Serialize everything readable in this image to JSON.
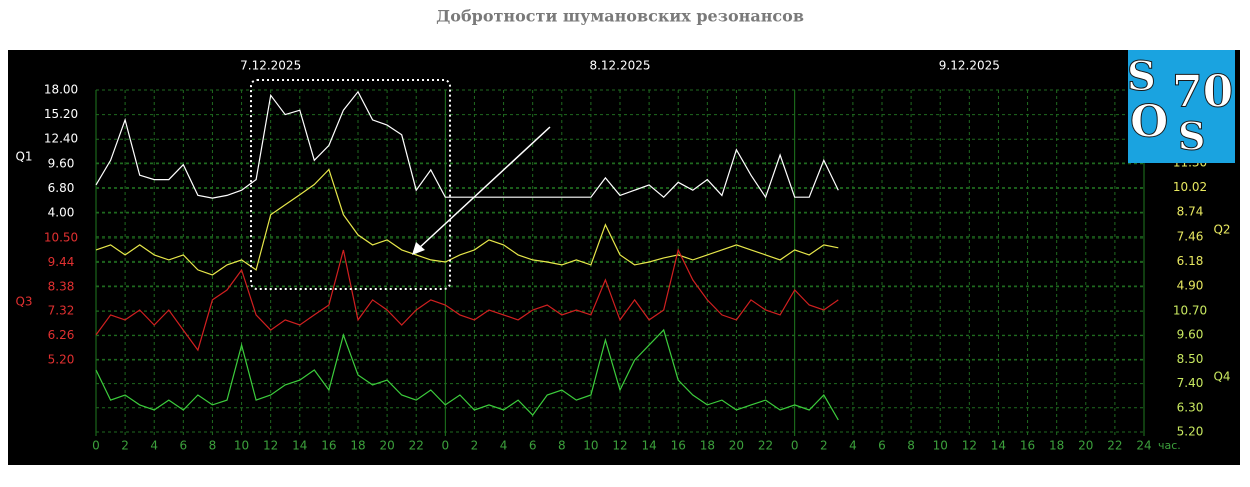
{
  "chart_data": {
    "type": "line",
    "title": "Добротности шумановских резонансов",
    "logo": [
      "S",
      "70",
      "O",
      "S"
    ],
    "x_unit": "час.",
    "xlim": [
      0,
      72
    ],
    "dates": [
      {
        "value": 12,
        "label": "7.12.2025"
      },
      {
        "value": 36,
        "label": "8.12.2025"
      },
      {
        "value": 60,
        "label": "9.12.2025"
      }
    ],
    "xticks": [
      0,
      2,
      4,
      6,
      8,
      10,
      12,
      14,
      16,
      18,
      20,
      22,
      {
        "value": 24,
        "label": "0"
      },
      {
        "value": 26,
        "label": "2"
      },
      {
        "value": 28,
        "label": "4"
      },
      {
        "value": 30,
        "label": "6"
      },
      {
        "value": 32,
        "label": "8"
      },
      {
        "value": 34,
        "label": "10"
      },
      {
        "value": 36,
        "label": "12"
      },
      {
        "value": 38,
        "label": "14"
      },
      {
        "value": 40,
        "label": "16"
      },
      {
        "value": 42,
        "label": "18"
      },
      {
        "value": 44,
        "label": "20"
      },
      {
        "value": 46,
        "label": "22"
      },
      {
        "value": 48,
        "label": "0"
      },
      {
        "value": 50,
        "label": "2"
      },
      {
        "value": 52,
        "label": "4"
      },
      {
        "value": 54,
        "label": "6"
      },
      {
        "value": 56,
        "label": "8"
      },
      {
        "value": 58,
        "label": "10"
      },
      {
        "value": 60,
        "label": "12"
      },
      {
        "value": 62,
        "label": "14"
      },
      {
        "value": 64,
        "label": "16"
      },
      {
        "value": 66,
        "label": "18"
      },
      {
        "value": 68,
        "label": "20"
      },
      {
        "value": 70,
        "label": "22"
      },
      {
        "value": 72,
        "label": "24"
      }
    ],
    "grid": true,
    "x": [
      0,
      1,
      2,
      3,
      4,
      5,
      6,
      7,
      8,
      9,
      10,
      11,
      12,
      13,
      14,
      15,
      16,
      17,
      18,
      19,
      20,
      21,
      22,
      23,
      24,
      25,
      26,
      27,
      28,
      29,
      30,
      31,
      32,
      33,
      34,
      35,
      36,
      37,
      38,
      39,
      40,
      41,
      42,
      43,
      44,
      45,
      46,
      47,
      48,
      49,
      50,
      51
    ],
    "series": [
      {
        "name": "Q1",
        "color": "#ffffff",
        "axis_side": "left",
        "ylim": [
          4,
          18
        ],
        "yticks": [
          {
            "value": 18,
            "label": "18.00"
          },
          {
            "value": 15.2,
            "label": "15.20"
          },
          {
            "value": 12.4,
            "label": "12.40"
          },
          {
            "value": 9.6,
            "label": "9.60"
          },
          {
            "value": 6.8,
            "label": "6.80"
          },
          {
            "value": 4,
            "label": "4.00"
          }
        ],
        "values": [
          7.2,
          10.0,
          14.6,
          8.3,
          7.8,
          7.8,
          9.5,
          6.0,
          5.7,
          6.0,
          6.6,
          7.8,
          17.4,
          15.2,
          15.7,
          10.0,
          11.7,
          15.7,
          17.8,
          14.6,
          14.0,
          12.9,
          6.6,
          8.9,
          5.8,
          5.8,
          5.8,
          5.8,
          5.8,
          5.8,
          5.8,
          5.8,
          5.8,
          5.8,
          5.8,
          8.0,
          6.0,
          6.6,
          7.2,
          5.8,
          7.5,
          6.6,
          7.8,
          6.0,
          11.2,
          8.3,
          5.8,
          10.6,
          5.8,
          5.8,
          10.0,
          6.6
        ]
      },
      {
        "name": "Q2",
        "color": "#e6e64a",
        "axis_side": "right",
        "ylim": [
          4.9,
          11.3
        ],
        "yticks": [
          {
            "value": 11.3,
            "label": "11.30"
          },
          {
            "value": 10.02,
            "label": "10.02"
          },
          {
            "value": 8.74,
            "label": "8.74"
          },
          {
            "value": 7.46,
            "label": "7.46"
          },
          {
            "value": 6.18,
            "label": "6.18"
          },
          {
            "value": 4.9,
            "label": "4.90"
          }
        ],
        "values": [
          6.78,
          7.04,
          6.52,
          7.04,
          6.52,
          6.26,
          6.52,
          5.74,
          5.48,
          6.0,
          6.26,
          5.74,
          8.61,
          9.13,
          9.65,
          10.18,
          10.96,
          8.61,
          7.56,
          7.04,
          7.3,
          6.78,
          6.52,
          6.26,
          6.15,
          6.52,
          6.78,
          7.3,
          7.04,
          6.52,
          6.26,
          6.15,
          6.0,
          6.26,
          6.0,
          8.09,
          6.52,
          6.0,
          6.15,
          6.36,
          6.52,
          6.26,
          6.52,
          6.78,
          7.04,
          6.78,
          6.52,
          6.26,
          6.78,
          6.52,
          7.04,
          6.89
        ]
      },
      {
        "name": "Q3",
        "color": "#d02020",
        "axis_side": "left",
        "ylim": [
          5.2,
          10.5
        ],
        "yticks": [
          {
            "value": 10.5,
            "label": "10.50"
          },
          {
            "value": 9.44,
            "label": "9.44"
          },
          {
            "value": 8.38,
            "label": "8.38"
          },
          {
            "value": 7.32,
            "label": "7.32"
          },
          {
            "value": 6.26,
            "label": "6.26"
          },
          {
            "value": 5.2,
            "label": "5.20"
          }
        ],
        "values": [
          6.29,
          7.16,
          6.94,
          7.37,
          6.72,
          7.37,
          6.5,
          5.63,
          7.81,
          8.24,
          9.11,
          7.16,
          6.5,
          6.94,
          6.72,
          7.16,
          7.59,
          9.98,
          6.94,
          7.81,
          7.37,
          6.72,
          7.37,
          7.81,
          7.59,
          7.16,
          6.94,
          7.37,
          7.16,
          6.94,
          7.37,
          7.59,
          7.16,
          7.37,
          7.16,
          8.68,
          6.94,
          7.81,
          6.94,
          7.37,
          9.98,
          8.68,
          7.81,
          7.16,
          6.94,
          7.81,
          7.37,
          7.16,
          8.24,
          7.59,
          7.37,
          7.81
        ]
      },
      {
        "name": "Q4",
        "color": "#3ccc3c",
        "axis_side": "right",
        "ylim": [
          5.2,
          10.7
        ],
        "yticks": [
          {
            "value": 10.7,
            "label": "10.70"
          },
          {
            "value": 9.6,
            "label": "9.60"
          },
          {
            "value": 8.5,
            "label": "8.50"
          },
          {
            "value": 7.4,
            "label": "7.40"
          },
          {
            "value": 6.3,
            "label": "6.30"
          },
          {
            "value": 5.2,
            "label": "5.20"
          }
        ],
        "values": [
          8.02,
          6.65,
          6.88,
          6.43,
          6.2,
          6.65,
          6.2,
          6.88,
          6.43,
          6.65,
          9.15,
          6.65,
          6.88,
          7.34,
          7.56,
          8.02,
          7.11,
          9.61,
          7.79,
          7.34,
          7.56,
          6.88,
          6.65,
          7.11,
          6.43,
          6.88,
          6.2,
          6.43,
          6.2,
          6.65,
          5.97,
          6.88,
          7.11,
          6.65,
          6.88,
          9.38,
          7.11,
          8.47,
          9.15,
          9.84,
          7.56,
          6.88,
          6.43,
          6.65,
          6.2,
          6.43,
          6.65,
          6.2,
          6.43,
          6.2,
          6.88,
          5.75
        ]
      }
    ]
  }
}
